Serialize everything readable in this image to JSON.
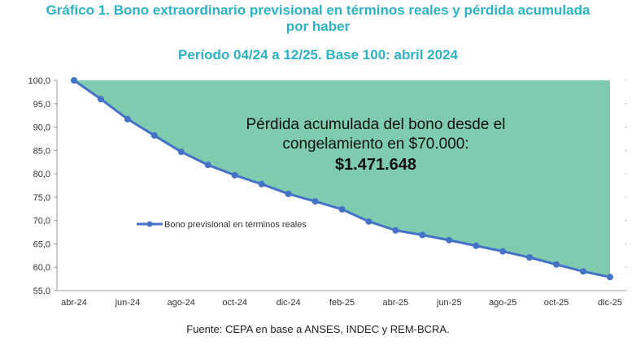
{
  "header": {
    "title_line1": "Gráfico 1. Bono extraordinario previsional en términos reales y pérdida acumulada",
    "title_line2": "por haber",
    "subtitle": "Período 04/24 a 12/25. Base 100: abril 2024"
  },
  "footer": {
    "source": "Fuente: CEPA en base a ANSES, INDEC y REM-BCRA."
  },
  "annotation": {
    "line1": "Pérdida acumulada del bono desde el",
    "line2": "congelamiento en $70.000:",
    "value": "$1.471.648"
  },
  "chart_data": {
    "type": "line",
    "ylim": [
      55,
      100
    ],
    "yticks": [
      "55,0",
      "60,0",
      "65,0",
      "70,0",
      "75,0",
      "80,0",
      "85,0",
      "90,0",
      "95,0",
      "100,0"
    ],
    "ytick_values": [
      55,
      60,
      65,
      70,
      75,
      80,
      85,
      90,
      95,
      100
    ],
    "xtick_labels": [
      "abr-24",
      "jun-24",
      "ago-24",
      "oct-24",
      "dic-24",
      "feb-25",
      "abr-25",
      "jun-25",
      "ago-25",
      "oct-25",
      "dic-25"
    ],
    "x": [
      "abr-24",
      "may-24",
      "jun-24",
      "jul-24",
      "ago-24",
      "sep-24",
      "oct-24",
      "nov-24",
      "dic-24",
      "ene-25",
      "feb-25",
      "mar-25",
      "abr-25",
      "may-25",
      "jun-25",
      "jul-25",
      "ago-25",
      "sep-25",
      "oct-25",
      "nov-25",
      "dic-25"
    ],
    "series": [
      {
        "name": "Bono previsional en términos reales",
        "values": [
          100.0,
          96.0,
          91.7,
          88.2,
          84.7,
          81.9,
          79.7,
          77.8,
          75.7,
          74.1,
          72.4,
          69.8,
          67.9,
          66.9,
          65.8,
          64.6,
          63.4,
          62.1,
          60.6,
          59.1,
          57.9
        ]
      }
    ],
    "legend_position": "left",
    "grid": false,
    "line_color": "#4472c4",
    "fill_color": "#7fcbb0"
  }
}
